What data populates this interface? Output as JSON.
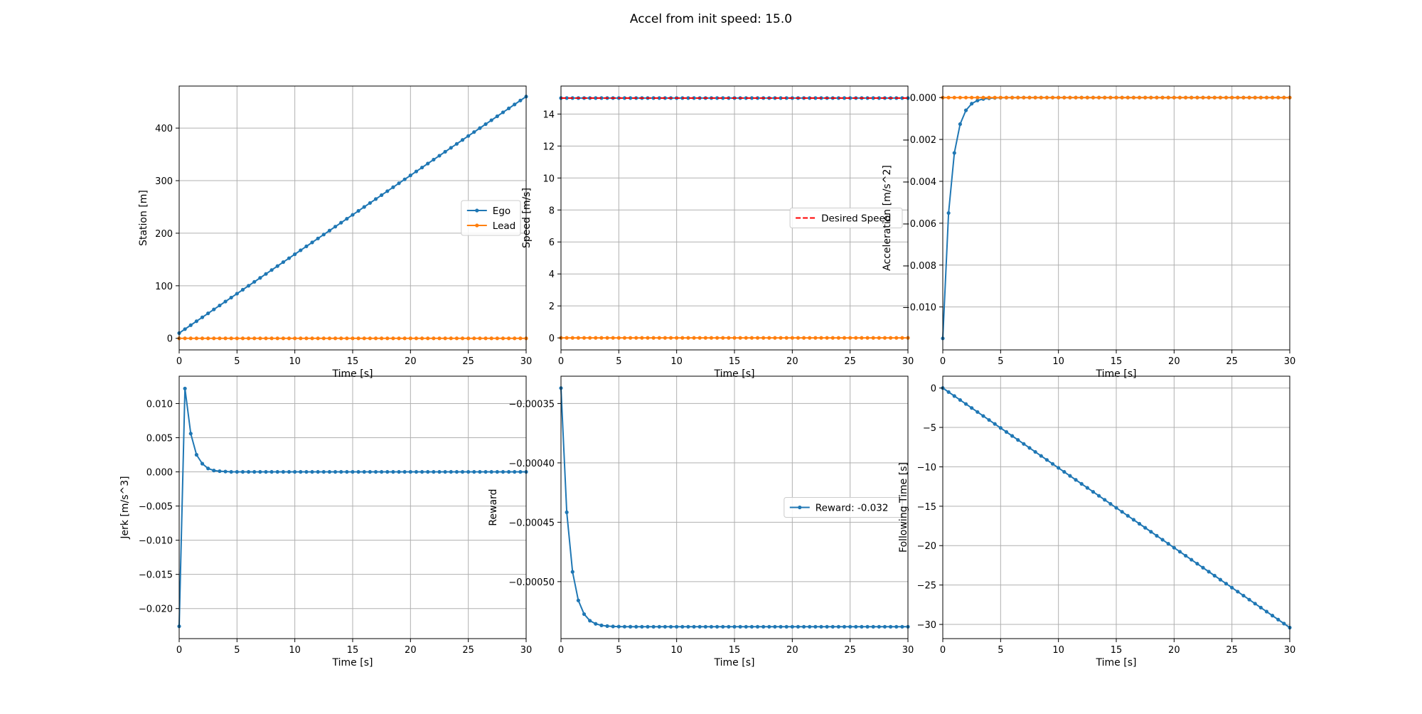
{
  "figure": {
    "title": "Accel from init speed: 15.0"
  },
  "colors": {
    "blue": "#1f77b4",
    "orange": "#ff7f0e",
    "red": "#ff0000",
    "grid": "#b0b0b0"
  },
  "chart_data": [
    {
      "id": "station",
      "type": "line",
      "xlabel": "Time [s]",
      "ylabel": "Station [m]",
      "xlim": [
        0,
        30
      ],
      "ylim": [
        -22,
        480
      ],
      "xticks": [
        0,
        5,
        10,
        15,
        20,
        25,
        30
      ],
      "yticks": [
        0,
        100,
        200,
        300,
        400
      ],
      "grid": true,
      "legend": "center-right",
      "series": [
        {
          "name": "Ego",
          "color": "#1f77b4",
          "marker": true,
          "x_range": [
            0,
            30,
            0.5
          ],
          "formula": "linear",
          "start": 10,
          "end": 460
        },
        {
          "name": "Lead",
          "color": "#ff7f0e",
          "marker": true,
          "x_range": [
            0,
            30,
            0.5
          ],
          "formula": "const",
          "value": 0
        }
      ]
    },
    {
      "id": "speed",
      "type": "line",
      "xlabel": "Time [s]",
      "ylabel": "Speed [m/s]",
      "xlim": [
        0,
        30
      ],
      "ylim": [
        -0.75,
        15.75
      ],
      "xticks": [
        0,
        5,
        10,
        15,
        20,
        25,
        30
      ],
      "yticks": [
        0,
        2,
        4,
        6,
        8,
        10,
        12,
        14
      ],
      "grid": true,
      "legend": "center-right",
      "series": [
        {
          "name": "",
          "color": "#1f77b4",
          "marker": true,
          "x_range": [
            0,
            30,
            0.5
          ],
          "formula": "const",
          "value": 15
        },
        {
          "name": "",
          "color": "#ff7f0e",
          "marker": true,
          "x_range": [
            0,
            30,
            0.5
          ],
          "formula": "const",
          "value": 0
        },
        {
          "name": "Desired Speed",
          "color": "#ff0000",
          "dashed": true,
          "marker": false,
          "x_range": [
            0,
            30,
            30
          ],
          "formula": "const",
          "value": 15
        }
      ]
    },
    {
      "id": "acceleration",
      "type": "line",
      "xlabel": "Time [s]",
      "ylabel": "Acceleration [m/s^2]",
      "xlim": [
        0,
        30
      ],
      "ylim": [
        -0.01205,
        0.00055
      ],
      "xticks": [
        0,
        5,
        10,
        15,
        20,
        25,
        30
      ],
      "yticks": [
        -0.01,
        -0.008,
        -0.006,
        -0.004,
        -0.002,
        0.0
      ],
      "ytick_labels": [
        "−0.010",
        "−0.008",
        "−0.006",
        "−0.004",
        "−0.002",
        "0.000"
      ],
      "grid": true,
      "legend": "none",
      "series": [
        {
          "name": "",
          "color": "#1f77b4",
          "marker": true,
          "x_range": [
            0,
            30,
            0.5
          ],
          "formula": "decay",
          "start": -0.0115,
          "rate": 1.47
        },
        {
          "name": "",
          "color": "#ff7f0e",
          "marker": true,
          "x_range": [
            0,
            30,
            0.5
          ],
          "formula": "const",
          "value": 0
        }
      ]
    },
    {
      "id": "jerk",
      "type": "line",
      "xlabel": "Time [s]",
      "ylabel": "Jerk [m/s^3]",
      "xlim": [
        0,
        30
      ],
      "ylim": [
        -0.0244,
        0.014
      ],
      "xticks": [
        0,
        5,
        10,
        15,
        20,
        25,
        30
      ],
      "yticks": [
        -0.02,
        -0.015,
        -0.01,
        -0.005,
        0.0,
        0.005,
        0.01
      ],
      "ytick_labels": [
        "−0.020",
        "−0.015",
        "−0.010",
        "−0.005",
        "0.000",
        "0.005",
        "0.010"
      ],
      "grid": true,
      "legend": "none",
      "series": [
        {
          "name": "",
          "color": "#1f77b4",
          "marker": true,
          "x": [
            0,
            0.5,
            1.0,
            1.5,
            2.0,
            2.5,
            3.0,
            3.5,
            4.0
          ],
          "y": [
            -0.0226,
            0.0122,
            0.0056,
            0.0025,
            0.0012,
            0.0005,
            0.0002,
            0.0001,
            5e-05
          ],
          "tail_x_range": [
            4.5,
            30,
            0.5
          ],
          "tail_value": 0
        }
      ]
    },
    {
      "id": "reward",
      "type": "line",
      "xlabel": "Time [s]",
      "ylabel": "Reward",
      "xlim": [
        0,
        30
      ],
      "ylim": [
        -0.000548,
        -0.000327
      ],
      "xticks": [
        0,
        5,
        10,
        15,
        20,
        25,
        30
      ],
      "yticks": [
        -0.0005,
        -0.00045,
        -0.0004,
        -0.00035
      ],
      "ytick_labels": [
        "−0.00050",
        "−0.00045",
        "−0.00040",
        "−0.00035"
      ],
      "grid": true,
      "legend": "center-right",
      "series": [
        {
          "name": "Reward: -0.032",
          "color": "#1f77b4",
          "marker": true,
          "x_range": [
            0,
            30,
            0.5
          ],
          "formula": "saturate",
          "start": -0.000337,
          "end": -0.000538,
          "rate": 1.47
        }
      ]
    },
    {
      "id": "following-time",
      "type": "line",
      "xlabel": "Time [s]",
      "ylabel": "Following Time [s]",
      "xlim": [
        0,
        30
      ],
      "ylim": [
        -31.8,
        1.5
      ],
      "xticks": [
        0,
        5,
        10,
        15,
        20,
        25,
        30
      ],
      "yticks": [
        -30,
        -25,
        -20,
        -15,
        -10,
        -5,
        0
      ],
      "ytick_labels": [
        "−30",
        "−25",
        "−20",
        "−15",
        "−10",
        "−5",
        "0"
      ],
      "grid": true,
      "legend": "none",
      "series": [
        {
          "name": "",
          "color": "#1f77b4",
          "marker": true,
          "x_range": [
            0,
            30,
            0.5
          ],
          "formula": "linear",
          "start": 0,
          "end": -30.4
        }
      ]
    }
  ]
}
